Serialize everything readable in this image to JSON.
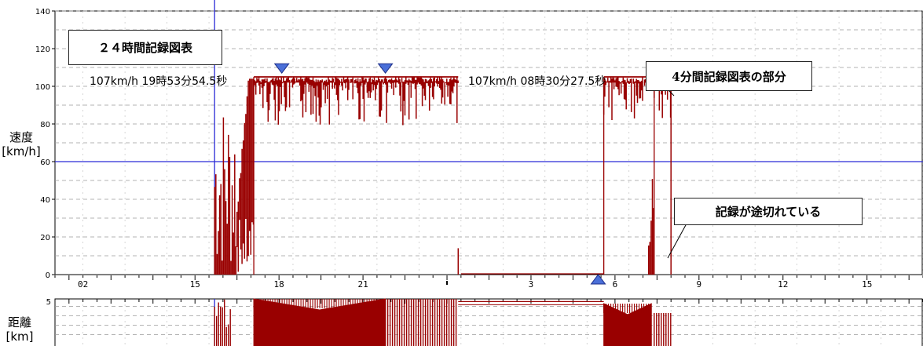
{
  "chart_data": [
    {
      "type": "line",
      "title": "２４時間記録図表",
      "ylabel_line1": "速度",
      "ylabel_line2": "[km/h]",
      "ylim": [
        0,
        140
      ],
      "yticks": [
        "0",
        "20",
        "40",
        "60",
        "80",
        "100",
        "120",
        "140"
      ],
      "xlim": [
        0.5,
        16
      ],
      "xtick_values": [
        1,
        3,
        4.5,
        6,
        7.5,
        9,
        10.5,
        12,
        13.5,
        15
      ],
      "xticks": [
        "02",
        "15",
        "18",
        "21",
        "",
        "3",
        "6",
        "9",
        "12",
        "15"
      ],
      "reference_line_y": 60,
      "cursor_x": 3.35,
      "peak_left": {
        "label": "107km/h 19時53分54.5秒",
        "x": 4.55,
        "y": 107
      },
      "peak_right": {
        "label": "107km/h 08時30分27.5秒",
        "x": 6.4,
        "y": 107
      },
      "bottom_marker_x": 10.2,
      "series": [
        {
          "segments": [
            {
              "x_start": 3.35,
              "x_end": 3.75,
              "y_min": 0,
              "y_max": 95,
              "pattern": "spiky"
            },
            {
              "x_start": 3.75,
              "x_end": 4.05,
              "y_min": 30,
              "y_max": 104,
              "pattern": "ramp"
            },
            {
              "x_start": 4.05,
              "x_end": 7.7,
              "y_min": 82,
              "y_max": 105,
              "pattern": "cruise"
            },
            {
              "x_start": 7.7,
              "x_end": 7.75,
              "y_min": 0,
              "y_max": 14,
              "pattern": "drop"
            },
            {
              "x_start": 7.75,
              "x_end": 10.3,
              "y_min": 0,
              "y_max": 0,
              "pattern": "flat"
            },
            {
              "x_start": 10.3,
              "x_end": 11.1,
              "y_min": 85,
              "y_max": 105,
              "pattern": "cruise"
            },
            {
              "x_start": 11.1,
              "x_end": 11.2,
              "y_min": 0,
              "y_max": 104,
              "pattern": "spiky"
            },
            {
              "x_start": 11.2,
              "x_end": 11.5,
              "y_min": 80,
              "y_max": 105,
              "pattern": "cruise"
            },
            {
              "x_start": 11.5,
              "x_end": 11.55,
              "y_min": 0,
              "y_max": 104,
              "pattern": "drop"
            }
          ]
        }
      ]
    },
    {
      "type": "area",
      "ylabel_line1": "距離",
      "ylabel_line2": "[km]",
      "ylim": [
        0,
        5
      ],
      "yticks": [
        "5"
      ],
      "bands": [
        {
          "x_start": 3.35,
          "x_end": 3.65,
          "lo": 0,
          "hi": 5,
          "pattern": "spiky"
        },
        {
          "x_start": 4.05,
          "x_end": 6.4,
          "lo": 0,
          "hi": 5,
          "pattern": "lens"
        },
        {
          "x_start": 6.4,
          "x_end": 7.7,
          "lo": 0,
          "hi": 5,
          "pattern": "bars"
        },
        {
          "x_start": 7.7,
          "x_end": 10.3,
          "lo": 4.3,
          "hi": 4.3,
          "pattern": "flat"
        },
        {
          "x_start": 10.3,
          "x_end": 11.15,
          "lo": 0,
          "hi": 4.5,
          "pattern": "lens"
        },
        {
          "x_start": 11.2,
          "x_end": 11.5,
          "lo": 0,
          "hi": 3.5,
          "pattern": "bars"
        }
      ]
    }
  ],
  "annotations": {
    "upper_box": "4分間記録図表の部分",
    "lower_box": "記録が途切れている"
  },
  "colors": {
    "series": "#990000",
    "grid": "#9a9a9a",
    "cursor": "#2b2bd6",
    "marker": "#4a6fd8"
  }
}
